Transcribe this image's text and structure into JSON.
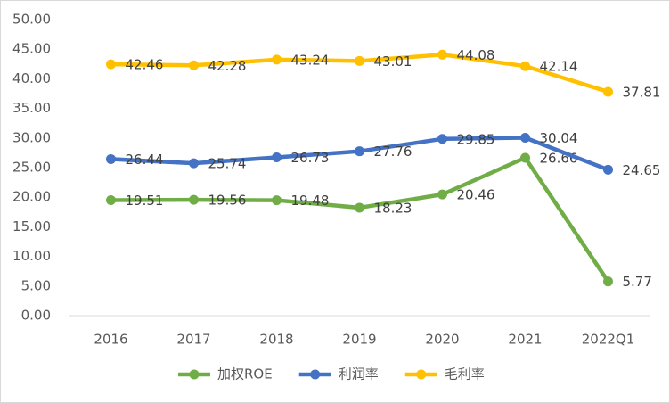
{
  "chart_data": {
    "type": "line",
    "categories": [
      "2016",
      "2017",
      "2018",
      "2019",
      "2020",
      "2021",
      "2022Q1"
    ],
    "series": [
      {
        "name": "加权ROE",
        "color": "#70ad47",
        "values": [
          19.51,
          19.56,
          19.48,
          18.23,
          20.46,
          26.66,
          5.77
        ]
      },
      {
        "name": "利润率",
        "color": "#4472c4",
        "values": [
          26.44,
          25.74,
          26.73,
          27.76,
          29.85,
          30.04,
          24.65
        ]
      },
      {
        "name": "毛利率",
        "color": "#ffc000",
        "values": [
          42.46,
          42.28,
          43.24,
          43.01,
          44.08,
          42.14,
          37.81
        ]
      }
    ],
    "ylim": [
      0,
      50
    ],
    "yticks": [
      {
        "value": 0,
        "label": "0.00"
      },
      {
        "value": 5,
        "label": "5.00"
      },
      {
        "value": 10,
        "label": "10.00"
      },
      {
        "value": 15,
        "label": "15.00"
      },
      {
        "value": 20,
        "label": "20.00"
      },
      {
        "value": 25,
        "label": "25.00"
      },
      {
        "value": 30,
        "label": "30.00"
      },
      {
        "value": 35,
        "label": "35.00"
      },
      {
        "value": 40,
        "label": "40.00"
      },
      {
        "value": 45,
        "label": "45.00"
      },
      {
        "value": 50,
        "label": "50.00"
      }
    ],
    "grid": false,
    "legend": "bottom"
  }
}
